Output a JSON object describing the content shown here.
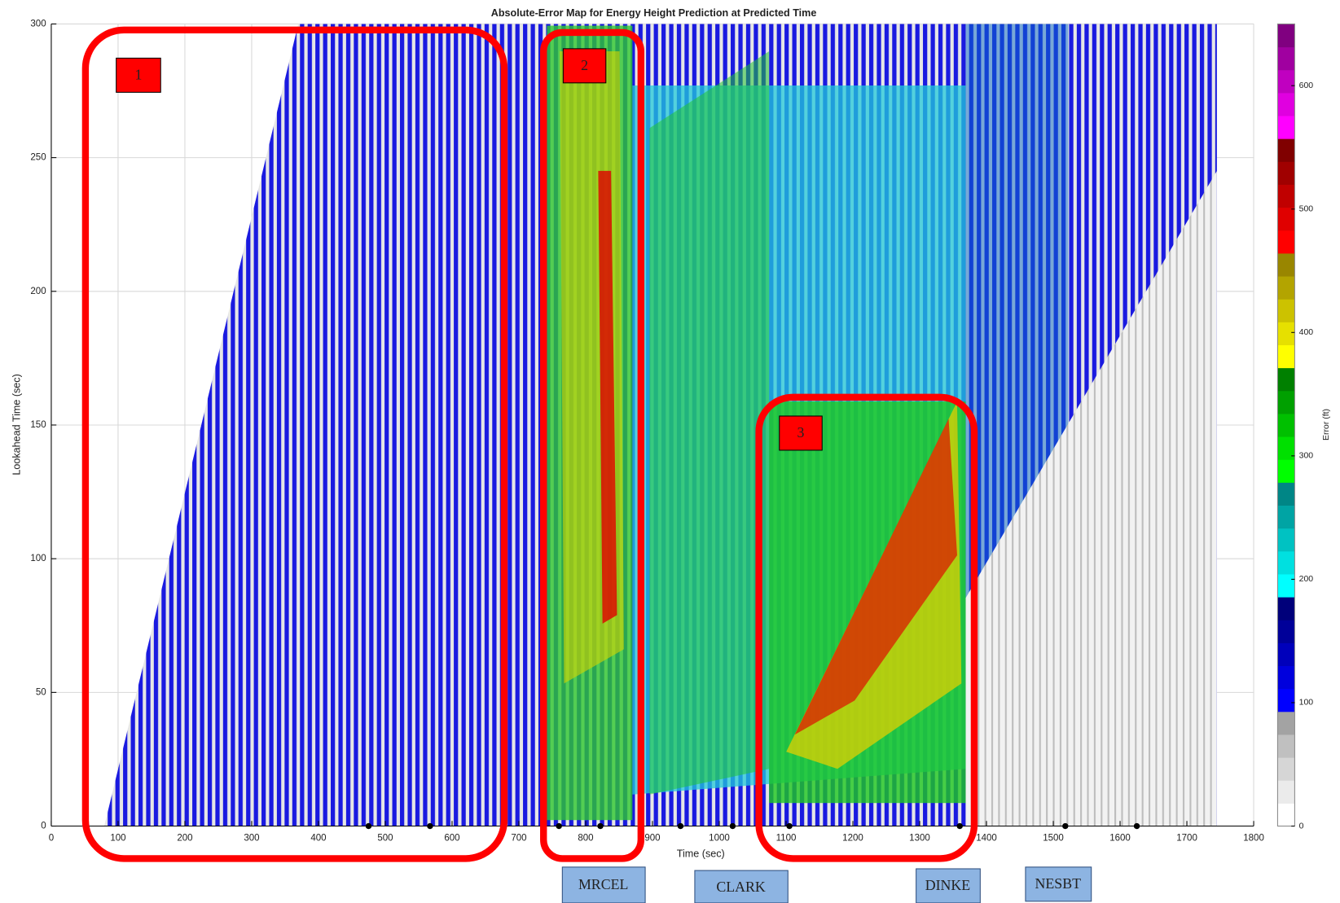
{
  "chart_data": {
    "type": "heatmap",
    "title": "Absolute-Error Map for Energy Height Prediction at Predicted Time",
    "x_label": "Time (sec)",
    "y_label": "Lookahead Time (sec)",
    "xlim": [
      0,
      1800
    ],
    "xticks": [
      0,
      100,
      200,
      300,
      400,
      500,
      600,
      700,
      800,
      900,
      1000,
      1100,
      1200,
      1300,
      1400,
      1500,
      1600,
      1700,
      1800
    ],
    "ylim": [
      0,
      300
    ],
    "yticks": [
      0,
      50,
      100,
      150,
      200,
      250,
      300
    ],
    "grid": true,
    "colorbar": {
      "label": "Error (ft)",
      "clim": [
        0,
        650
      ],
      "ticks": [
        0,
        100,
        200,
        300,
        400,
        500,
        600
      ],
      "colors": [
        "#ffffff",
        "#ebebeb",
        "#d6d6d6",
        "#c0c0c0",
        "#a3a3a3",
        "#0000ff",
        "#0000dd",
        "#0000bb",
        "#000099",
        "#00007a",
        "#00ffff",
        "#00e0e0",
        "#00c2c2",
        "#00a4a4",
        "#008686",
        "#00ff00",
        "#00e000",
        "#00c000",
        "#00a000",
        "#008000",
        "#ffff00",
        "#e6e000",
        "#ccc200",
        "#b3a400",
        "#998600",
        "#ff0000",
        "#e00000",
        "#c00000",
        "#a00000",
        "#800000",
        "#ff00ff",
        "#e000e0",
        "#c000c0",
        "#a000a0",
        "#800080"
      ]
    },
    "markers": [
      475,
      567,
      760,
      822,
      942,
      1020,
      1105,
      1360,
      1518,
      1625
    ],
    "regions": [
      "1",
      "2",
      "3"
    ],
    "waypoints": [
      "MRCEL",
      "CLARK",
      "DINKE",
      "NESBT"
    ]
  }
}
